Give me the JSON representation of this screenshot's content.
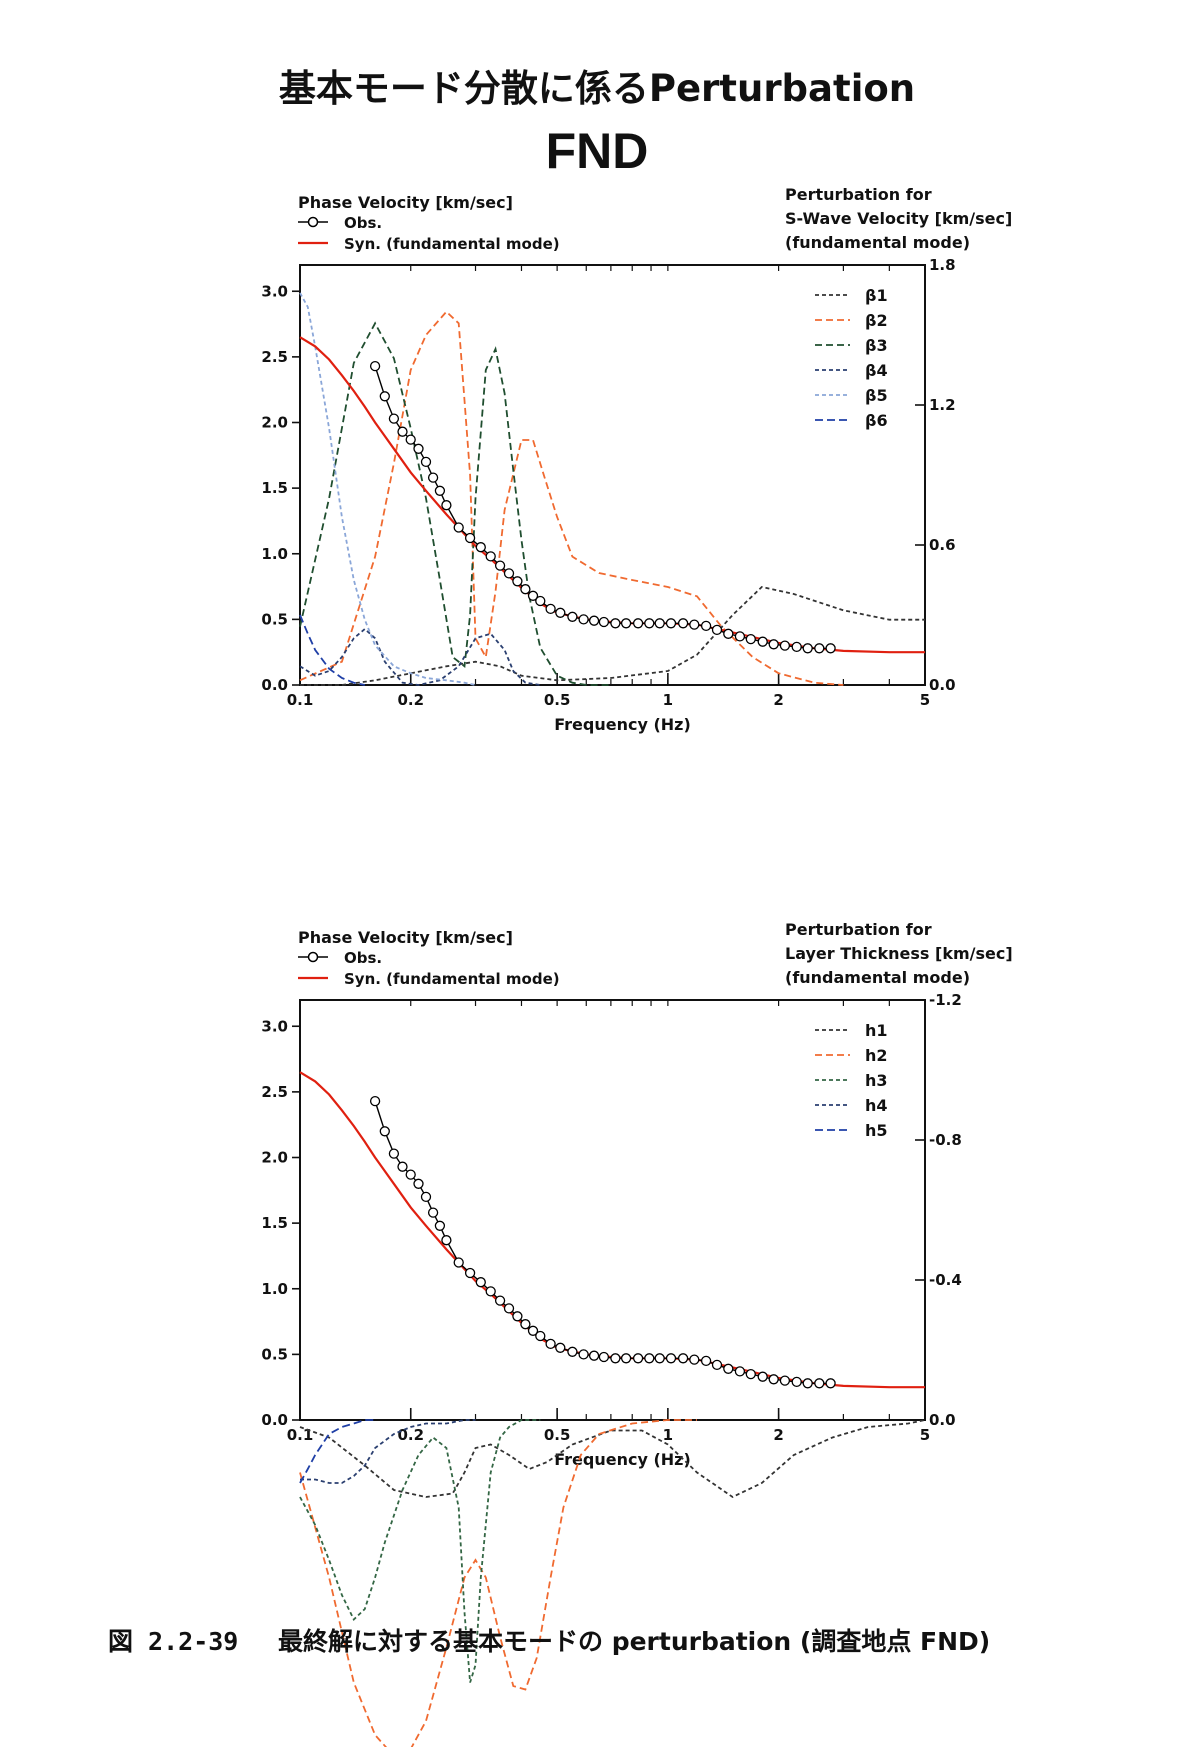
{
  "page": {
    "title": "基本モード分散に係るPerturbation",
    "station": "FND",
    "caption_number": "図 2.2-39",
    "caption_text": "最終解に対する基本モードの perturbation (調査地点 FND)"
  },
  "chart_data": [
    {
      "type": "line",
      "left_axis": {
        "title": "Phase Velocity [km/sec]",
        "range": [
          0,
          3.2
        ],
        "ticks": [
          0.0,
          0.5,
          1.0,
          1.5,
          2.0,
          2.5,
          3.0
        ],
        "tick_labels": [
          "0.0",
          "0.5",
          "1.0",
          "1.5",
          "2.0",
          "2.5",
          "3.0"
        ]
      },
      "right_axis": {
        "title_lines": [
          "Perturbation for",
          "S-Wave Velocity [km/sec]",
          "(fundamental mode)"
        ],
        "range": [
          0,
          1.8
        ],
        "ticks": [
          0.0,
          0.6,
          1.2,
          1.8
        ],
        "tick_labels": [
          "0.0",
          "0.6",
          "1.2",
          "1.8"
        ]
      },
      "x_axis": {
        "label": "Frequency (Hz)",
        "scale": "log",
        "range": [
          0.1,
          5
        ],
        "ticks": [
          0.1,
          0.2,
          0.5,
          1,
          2,
          5
        ],
        "tick_labels": [
          "0.1",
          "0.2",
          "0.5",
          "1",
          "2",
          "5"
        ]
      },
      "obs": {
        "name": "Obs.",
        "color": "#000000",
        "x": [
          0.16,
          0.17,
          0.18,
          0.19,
          0.2,
          0.21,
          0.22,
          0.23,
          0.24,
          0.25,
          0.27,
          0.29,
          0.31,
          0.33,
          0.35,
          0.37,
          0.39,
          0.41,
          0.43,
          0.45,
          0.48,
          0.51,
          0.55,
          0.59,
          0.63,
          0.67,
          0.72,
          0.77,
          0.83,
          0.89,
          0.95,
          1.02,
          1.1,
          1.18,
          1.27,
          1.36,
          1.46,
          1.57,
          1.68,
          1.81,
          1.94,
          2.08,
          2.24,
          2.4,
          2.58,
          2.77
        ],
        "y": [
          2.43,
          2.2,
          2.03,
          1.93,
          1.87,
          1.8,
          1.7,
          1.58,
          1.48,
          1.37,
          1.2,
          1.12,
          1.05,
          0.98,
          0.91,
          0.85,
          0.79,
          0.73,
          0.68,
          0.64,
          0.58,
          0.55,
          0.52,
          0.5,
          0.49,
          0.48,
          0.47,
          0.47,
          0.47,
          0.47,
          0.47,
          0.47,
          0.47,
          0.46,
          0.45,
          0.42,
          0.39,
          0.37,
          0.35,
          0.33,
          0.31,
          0.3,
          0.29,
          0.28,
          0.28,
          0.28
        ]
      },
      "syn": {
        "name": "Syn. (fundamental mode)",
        "color": "#e02010",
        "x": [
          0.1,
          0.11,
          0.12,
          0.13,
          0.14,
          0.15,
          0.16,
          0.18,
          0.2,
          0.22,
          0.25,
          0.28,
          0.3,
          0.33,
          0.36,
          0.4,
          0.45,
          0.5,
          0.6,
          0.7,
          0.8,
          1,
          1.2,
          1.5,
          2,
          2.5,
          3,
          4,
          5
        ],
        "y": [
          2.65,
          2.58,
          2.48,
          2.36,
          2.24,
          2.12,
          2.0,
          1.8,
          1.62,
          1.48,
          1.3,
          1.15,
          1.06,
          0.96,
          0.86,
          0.74,
          0.62,
          0.55,
          0.5,
          0.48,
          0.47,
          0.47,
          0.46,
          0.4,
          0.32,
          0.28,
          0.26,
          0.25,
          0.25
        ]
      },
      "series": [
        {
          "name": "β1",
          "color": "#333333",
          "dash": "4,3",
          "x": [
            0.1,
            0.13,
            0.16,
            0.2,
            0.25,
            0.3,
            0.35,
            0.4,
            0.5,
            0.7,
            1.0,
            1.2,
            1.5,
            1.8,
            2.2,
            3,
            4,
            5
          ],
          "y": [
            0.0,
            0.0,
            0.02,
            0.05,
            0.08,
            0.1,
            0.08,
            0.04,
            0.02,
            0.03,
            0.06,
            0.13,
            0.3,
            0.42,
            0.39,
            0.32,
            0.28,
            0.28
          ]
        },
        {
          "name": "β2",
          "color": "#f06a30",
          "dash": "7,4",
          "x": [
            0.1,
            0.13,
            0.16,
            0.18,
            0.2,
            0.22,
            0.25,
            0.27,
            0.29,
            0.3,
            0.32,
            0.34,
            0.36,
            0.4,
            0.43,
            0.46,
            0.5,
            0.55,
            0.65,
            0.8,
            1.0,
            1.2,
            1.4,
            1.7,
            2,
            2.5,
            3
          ],
          "y": [
            0.02,
            0.1,
            0.55,
            0.95,
            1.35,
            1.5,
            1.6,
            1.55,
            0.9,
            0.2,
            0.12,
            0.4,
            0.75,
            1.05,
            1.05,
            0.9,
            0.72,
            0.55,
            0.48,
            0.45,
            0.42,
            0.38,
            0.25,
            0.12,
            0.05,
            0.01,
            0.0
          ]
        },
        {
          "name": "β3",
          "color": "#1f4e2f",
          "dash": "7,4",
          "x": [
            0.1,
            0.12,
            0.14,
            0.16,
            0.18,
            0.2,
            0.22,
            0.24,
            0.26,
            0.28,
            0.29,
            0.3,
            0.32,
            0.34,
            0.36,
            0.38,
            0.4,
            0.42,
            0.45,
            0.5,
            0.55,
            0.6,
            0.7
          ],
          "y": [
            0.25,
            0.8,
            1.38,
            1.55,
            1.4,
            1.1,
            0.8,
            0.45,
            0.12,
            0.08,
            0.3,
            0.8,
            1.35,
            1.44,
            1.25,
            0.92,
            0.62,
            0.38,
            0.16,
            0.04,
            0.01,
            0.0,
            0.0
          ]
        },
        {
          "name": "β4",
          "color": "#2a3f70",
          "dash": "4,3",
          "x": [
            0.1,
            0.11,
            0.12,
            0.13,
            0.14,
            0.15,
            0.16,
            0.17,
            0.19,
            0.21,
            0.24,
            0.27,
            0.3,
            0.33,
            0.36,
            0.38,
            0.41,
            0.45
          ],
          "y": [
            0.08,
            0.04,
            0.06,
            0.12,
            0.2,
            0.24,
            0.2,
            0.1,
            0.01,
            0.0,
            0.02,
            0.08,
            0.2,
            0.22,
            0.15,
            0.06,
            0.01,
            0.0
          ]
        },
        {
          "name": "β5",
          "color": "#8aa6d8",
          "dash": "4,3",
          "x": [
            0.1,
            0.105,
            0.11,
            0.12,
            0.13,
            0.14,
            0.15,
            0.16,
            0.18,
            0.2,
            0.22,
            0.25,
            0.28,
            0.3
          ],
          "y": [
            1.68,
            1.62,
            1.45,
            1.1,
            0.72,
            0.45,
            0.28,
            0.17,
            0.08,
            0.05,
            0.03,
            0.02,
            0.01,
            0.0
          ]
        },
        {
          "name": "β6",
          "color": "#1f3fa6",
          "dash": "8,4",
          "x": [
            0.1,
            0.105,
            0.11,
            0.12,
            0.13,
            0.14,
            0.15
          ],
          "y": [
            0.3,
            0.22,
            0.15,
            0.07,
            0.03,
            0.01,
            0.0
          ]
        }
      ]
    },
    {
      "type": "line",
      "left_axis": {
        "title": "Phase Velocity [km/sec]",
        "range": [
          0,
          3.2
        ],
        "ticks": [
          0.0,
          0.5,
          1.0,
          1.5,
          2.0,
          2.5,
          3.0
        ],
        "tick_labels": [
          "0.0",
          "0.5",
          "1.0",
          "1.5",
          "2.0",
          "2.5",
          "3.0"
        ]
      },
      "right_axis": {
        "title_lines": [
          "Perturbation for",
          "Layer Thickness [km/sec]",
          "(fundamental mode)"
        ],
        "range": [
          0,
          -1.2
        ],
        "ticks": [
          0.0,
          -0.4,
          -0.8,
          -1.2
        ],
        "tick_labels": [
          "0.0",
          "-0.4",
          "-0.8",
          "-1.2"
        ]
      },
      "x_axis": {
        "label": "Frequency (Hz)",
        "scale": "log",
        "range": [
          0.1,
          5
        ],
        "ticks": [
          0.1,
          0.2,
          0.5,
          1,
          2,
          5
        ],
        "tick_labels": [
          "0.1",
          "0.2",
          "0.5",
          "1",
          "2",
          "5"
        ]
      },
      "obs": {
        "name": "Obs.",
        "color": "#000000",
        "x": [
          0.16,
          0.17,
          0.18,
          0.19,
          0.2,
          0.21,
          0.22,
          0.23,
          0.24,
          0.25,
          0.27,
          0.29,
          0.31,
          0.33,
          0.35,
          0.37,
          0.39,
          0.41,
          0.43,
          0.45,
          0.48,
          0.51,
          0.55,
          0.59,
          0.63,
          0.67,
          0.72,
          0.77,
          0.83,
          0.89,
          0.95,
          1.02,
          1.1,
          1.18,
          1.27,
          1.36,
          1.46,
          1.57,
          1.68,
          1.81,
          1.94,
          2.08,
          2.24,
          2.4,
          2.58,
          2.77
        ],
        "y": [
          2.43,
          2.2,
          2.03,
          1.93,
          1.87,
          1.8,
          1.7,
          1.58,
          1.48,
          1.37,
          1.2,
          1.12,
          1.05,
          0.98,
          0.91,
          0.85,
          0.79,
          0.73,
          0.68,
          0.64,
          0.58,
          0.55,
          0.52,
          0.5,
          0.49,
          0.48,
          0.47,
          0.47,
          0.47,
          0.47,
          0.47,
          0.47,
          0.47,
          0.46,
          0.45,
          0.42,
          0.39,
          0.37,
          0.35,
          0.33,
          0.31,
          0.3,
          0.29,
          0.28,
          0.28,
          0.28
        ]
      },
      "syn": {
        "name": "Syn. (fundamental mode)",
        "color": "#e02010",
        "x": [
          0.1,
          0.11,
          0.12,
          0.13,
          0.14,
          0.15,
          0.16,
          0.18,
          0.2,
          0.22,
          0.25,
          0.28,
          0.3,
          0.33,
          0.36,
          0.4,
          0.45,
          0.5,
          0.6,
          0.7,
          0.8,
          1,
          1.2,
          1.5,
          2,
          2.5,
          3,
          4,
          5
        ],
        "y": [
          2.65,
          2.58,
          2.48,
          2.36,
          2.24,
          2.12,
          2.0,
          1.8,
          1.62,
          1.48,
          1.3,
          1.15,
          1.06,
          0.96,
          0.86,
          0.74,
          0.62,
          0.55,
          0.5,
          0.48,
          0.47,
          0.47,
          0.46,
          0.4,
          0.32,
          0.28,
          0.26,
          0.25,
          0.25
        ]
      },
      "series": [
        {
          "name": "h1",
          "color": "#333333",
          "dash": "4,3",
          "x": [
            0.1,
            0.12,
            0.15,
            0.18,
            0.22,
            0.26,
            0.28,
            0.3,
            0.33,
            0.37,
            0.42,
            0.47,
            0.55,
            0.7,
            0.85,
            1.0,
            1.2,
            1.5,
            1.8,
            2.2,
            2.8,
            3.5,
            4.5,
            5
          ],
          "y": [
            0.02,
            0.05,
            0.13,
            0.2,
            0.22,
            0.21,
            0.15,
            0.08,
            0.07,
            0.1,
            0.14,
            0.12,
            0.07,
            0.03,
            0.03,
            0.07,
            0.15,
            0.22,
            0.18,
            0.1,
            0.05,
            0.02,
            0.01,
            0.0
          ]
        },
        {
          "name": "h2",
          "color": "#f06a30",
          "dash": "7,4",
          "x": [
            0.1,
            0.12,
            0.14,
            0.16,
            0.18,
            0.2,
            0.22,
            0.25,
            0.28,
            0.3,
            0.32,
            0.35,
            0.38,
            0.41,
            0.44,
            0.48,
            0.52,
            0.58,
            0.65,
            0.8,
            1.0,
            1.2
          ],
          "y": [
            0.15,
            0.45,
            0.75,
            0.9,
            0.96,
            0.94,
            0.86,
            0.65,
            0.45,
            0.4,
            0.45,
            0.62,
            0.76,
            0.77,
            0.68,
            0.45,
            0.25,
            0.1,
            0.04,
            0.01,
            0.0,
            0.0
          ]
        },
        {
          "name": "h3",
          "color": "#336644",
          "dash": "4,3",
          "x": [
            0.1,
            0.11,
            0.12,
            0.13,
            0.14,
            0.15,
            0.16,
            0.17,
            0.19,
            0.21,
            0.23,
            0.25,
            0.27,
            0.28,
            0.29,
            0.3,
            0.31,
            0.33,
            0.35,
            0.37,
            0.4,
            0.45
          ],
          "y": [
            0.22,
            0.3,
            0.4,
            0.5,
            0.57,
            0.54,
            0.45,
            0.35,
            0.2,
            0.1,
            0.05,
            0.08,
            0.25,
            0.55,
            0.75,
            0.7,
            0.45,
            0.15,
            0.05,
            0.02,
            0.0,
            0.0
          ]
        },
        {
          "name": "h4",
          "color": "#2a3f70",
          "dash": "4,3",
          "x": [
            0.1,
            0.11,
            0.12,
            0.13,
            0.14,
            0.15,
            0.16,
            0.18,
            0.2,
            0.22,
            0.25,
            0.28,
            0.3
          ],
          "y": [
            0.17,
            0.17,
            0.18,
            0.18,
            0.16,
            0.13,
            0.08,
            0.04,
            0.02,
            0.01,
            0.01,
            0.0,
            0.0
          ]
        },
        {
          "name": "h5",
          "color": "#1f3fa6",
          "dash": "8,4",
          "x": [
            0.1,
            0.105,
            0.11,
            0.12,
            0.13,
            0.14,
            0.15,
            0.16
          ],
          "y": [
            0.18,
            0.14,
            0.1,
            0.04,
            0.02,
            0.01,
            0.0,
            0.0
          ]
        }
      ]
    }
  ]
}
